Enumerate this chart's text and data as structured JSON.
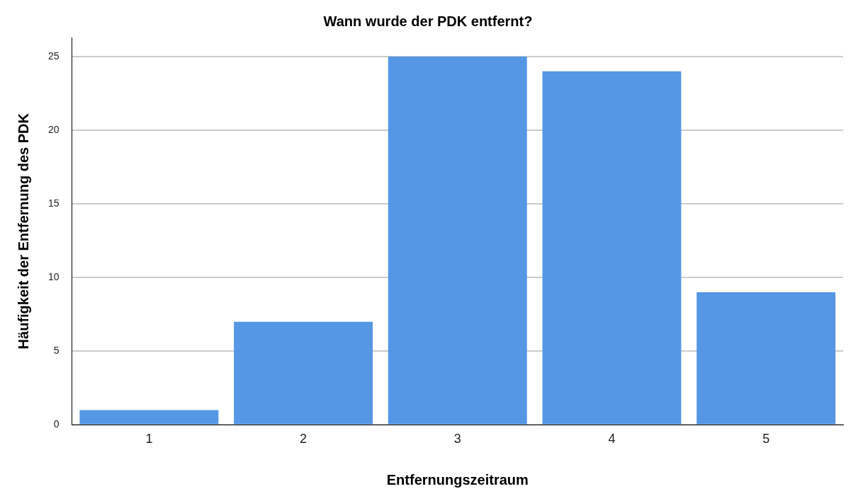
{
  "chart_data": {
    "type": "bar",
    "title": "Wann wurde der PDK entfernt?",
    "xlabel": "Entfernungszeitraum",
    "ylabel": "Häufigkeit der Entfernung des PDK",
    "categories": [
      "1",
      "2",
      "3",
      "4",
      "5"
    ],
    "values": [
      1,
      7,
      25,
      24,
      9
    ],
    "color": "#5596e5",
    "ylim": [
      0,
      26.3
    ],
    "yticks": [
      0,
      5,
      10,
      15,
      20,
      25
    ],
    "grid": "y"
  }
}
